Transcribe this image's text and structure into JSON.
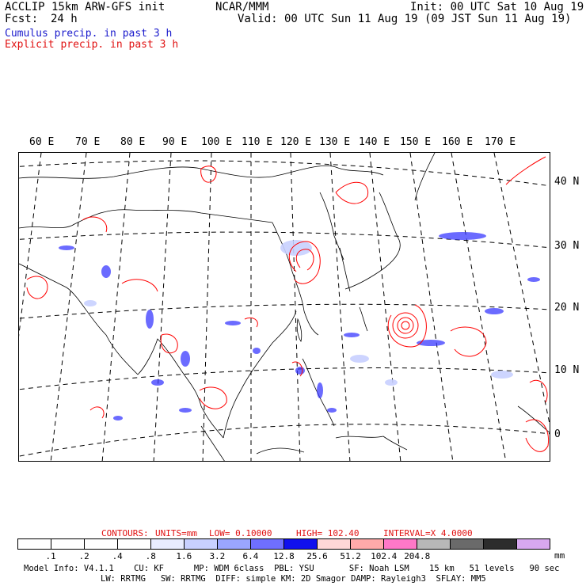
{
  "header": {
    "line1_left": "ACCLIP 15km ARW-GFS init",
    "center": "NCAR/MMM",
    "line1_right": "Init: 00 UTC Sat 10 Aug 19",
    "fcst_label": "Fcst:",
    "fcst_value": "24 h",
    "valid": "Valid: 00 UTC Sun 11 Aug 19 (09 JST Sun 11 Aug 19)",
    "cumulus": "Cumulus precip. in past 3 h",
    "explicit": "Explicit precip. in past 3 h"
  },
  "map": {
    "lon_labels": [
      "60 E",
      "70 E",
      "80 E",
      "90 E",
      "100 E",
      "110 E",
      "120 E",
      "130 E",
      "140 E",
      "150 E",
      "160 E",
      "170 E"
    ],
    "lat_labels": [
      "40 N",
      "30 N",
      "20 N",
      "10 N",
      "0"
    ],
    "colors": {
      "explicit": "#ff0000",
      "cumulus": "#3030ff",
      "coast": "#000000",
      "grid": "#000000"
    }
  },
  "contours_info": {
    "label": "CONTOURS:",
    "units": "UNITS=mm",
    "low": "LOW= 0.10000",
    "high": "HIGH= 102.40",
    "interval": "INTERVAL=X 4.0000"
  },
  "colorbar": {
    "colors": [
      "#ffffff",
      "#ffffff",
      "#ffffff",
      "#ffffff",
      "#e8ecff",
      "#c8d0ff",
      "#9aa6ff",
      "#6f6fff",
      "#1010ee",
      "#ffd8d8",
      "#ffaaaa",
      "#ff78c8",
      "#b8b8b8",
      "#6a6a6a",
      "#2c2c2c",
      "#d8a8f0"
    ],
    "labels": [
      ".1",
      ".2",
      ".4",
      ".8",
      "1.6",
      "3.2",
      "6.4",
      "12.8",
      "25.6",
      "51.2",
      "102.4",
      "204.8"
    ],
    "units": "mm"
  },
  "footer": {
    "line1": "Model Info: V4.1.1    CU: KF      MP: WDM 6class  PBL: YSU       SF: Noah LSM    15 km   51 levels   90 sec",
    "line2": "LW: RRTMG   SW: RRTMG  DIFF: simple KM: 2D Smagor DAMP: Rayleigh3  SFLAY: MM5"
  }
}
